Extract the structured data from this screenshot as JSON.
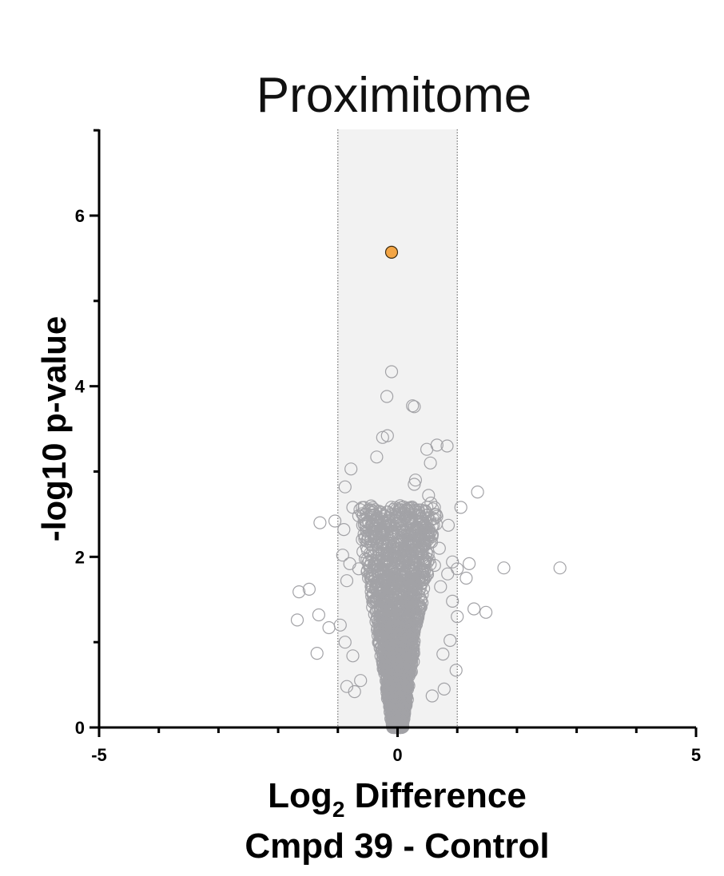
{
  "chart_data": {
    "type": "scatter",
    "title": "Proximitome",
    "xlabel": {
      "prefix": "Log",
      "subscript": "2",
      "suffix": " Difference"
    },
    "xlabel_line2": "Cmpd 39 - Control",
    "ylabel": "-log10 p-value",
    "xlim": [
      -5,
      5
    ],
    "ylim": [
      0,
      7
    ],
    "x_ticks_labeled": [
      -5,
      0,
      5
    ],
    "y_ticks_labeled": [
      0,
      2,
      4,
      6
    ],
    "x_tick_labels": [
      "-5",
      "0",
      "5"
    ],
    "y_tick_labels": [
      "0",
      "2",
      "4",
      "6"
    ],
    "threshold_band": [
      -1,
      1
    ],
    "grid": false,
    "colors": {
      "non_significant": "#a2a2a6",
      "highlight": "#f3a545",
      "band": "#f2f2f2"
    },
    "highlighted": [
      {
        "x": -0.1,
        "y": 5.57
      }
    ],
    "points": [
      {
        "x": -0.1,
        "y": 4.17
      },
      {
        "x": -0.18,
        "y": 3.88
      },
      {
        "x": 0.25,
        "y": 3.77
      },
      {
        "x": 0.28,
        "y": 3.76
      },
      {
        "x": -0.17,
        "y": 3.42
      },
      {
        "x": -0.25,
        "y": 3.4
      },
      {
        "x": 0.66,
        "y": 3.31
      },
      {
        "x": 0.83,
        "y": 3.3
      },
      {
        "x": 0.49,
        "y": 3.26
      },
      {
        "x": -0.78,
        "y": 3.03
      },
      {
        "x": -0.35,
        "y": 3.17
      },
      {
        "x": 0.55,
        "y": 3.1
      },
      {
        "x": -0.88,
        "y": 2.82
      },
      {
        "x": 0.28,
        "y": 2.85
      },
      {
        "x": 0.3,
        "y": 2.9
      },
      {
        "x": 1.34,
        "y": 2.76
      },
      {
        "x": 0.56,
        "y": 2.63
      },
      {
        "x": 1.06,
        "y": 2.58
      },
      {
        "x": -0.75,
        "y": 2.58
      },
      {
        "x": 0.52,
        "y": 2.72
      },
      {
        "x": -1.3,
        "y": 2.4
      },
      {
        "x": -1.05,
        "y": 2.42
      },
      {
        "x": 0.85,
        "y": 2.37
      },
      {
        "x": 0.62,
        "y": 2.45
      },
      {
        "x": 0.15,
        "y": 2.48
      },
      {
        "x": 0.24,
        "y": 2.42
      },
      {
        "x": 0.35,
        "y": 2.55
      },
      {
        "x": -0.9,
        "y": 2.32
      },
      {
        "x": 2.72,
        "y": 1.87
      },
      {
        "x": 1.78,
        "y": 1.87
      },
      {
        "x": 1.2,
        "y": 1.92
      },
      {
        "x": 1.0,
        "y": 1.86
      },
      {
        "x": 0.92,
        "y": 1.94
      },
      {
        "x": 1.15,
        "y": 1.75
      },
      {
        "x": 0.84,
        "y": 1.8
      },
      {
        "x": 0.72,
        "y": 1.65
      },
      {
        "x": -1.65,
        "y": 1.59
      },
      {
        "x": -1.48,
        "y": 1.62
      },
      {
        "x": -1.68,
        "y": 1.26
      },
      {
        "x": -1.32,
        "y": 1.32
      },
      {
        "x": -1.15,
        "y": 1.17
      },
      {
        "x": -1.35,
        "y": 0.87
      },
      {
        "x": 1.28,
        "y": 1.39
      },
      {
        "x": 1.48,
        "y": 1.35
      },
      {
        "x": 1.0,
        "y": 1.3
      },
      {
        "x": 0.92,
        "y": 1.48
      },
      {
        "x": 0.98,
        "y": 0.67
      },
      {
        "x": -0.85,
        "y": 1.72
      },
      {
        "x": -0.92,
        "y": 2.02
      },
      {
        "x": -0.8,
        "y": 1.92
      },
      {
        "x": -0.96,
        "y": 1.2
      },
      {
        "x": -0.88,
        "y": 1.0
      },
      {
        "x": -0.75,
        "y": 0.84
      },
      {
        "x": -0.85,
        "y": 0.48
      },
      {
        "x": -0.62,
        "y": 0.55
      },
      {
        "x": -0.72,
        "y": 0.42
      },
      {
        "x": 0.88,
        "y": 1.02
      },
      {
        "x": 0.76,
        "y": 0.86
      },
      {
        "x": 0.78,
        "y": 0.45
      },
      {
        "x": 0.58,
        "y": 0.37
      },
      {
        "x": 0.62,
        "y": 1.9
      },
      {
        "x": 0.48,
        "y": 2.05
      },
      {
        "x": 0.7,
        "y": 2.1
      },
      {
        "x": 0.3,
        "y": 2.2
      },
      {
        "x": -0.5,
        "y": 2.21
      },
      {
        "x": -0.58,
        "y": 2.06
      },
      {
        "x": -0.42,
        "y": 2.36
      },
      {
        "x": -0.65,
        "y": 1.86
      }
    ],
    "cloud": {
      "count": 2600,
      "seed": 39
    }
  }
}
